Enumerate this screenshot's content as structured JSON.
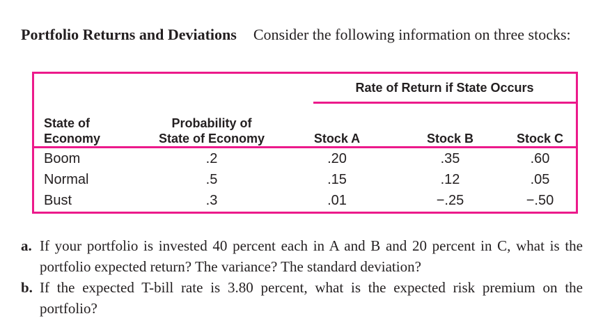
{
  "colors": {
    "accent_pink": "#ec1a8b",
    "text": "#231f20"
  },
  "problem": {
    "title": "Portfolio Returns and Deviations",
    "intro": "Consider the following information on three stocks:"
  },
  "table": {
    "span_header": "Rate of Return if State Occurs",
    "col_headers": {
      "state_line1": "State of",
      "state_line2": "Economy",
      "probability_line1": "Probability of",
      "probability_line2": "State of Economy",
      "stock_a": "Stock A",
      "stock_b": "Stock B",
      "stock_c": "Stock C"
    },
    "rows": [
      {
        "state": "Boom",
        "probability": ".2",
        "stock_a": ".20",
        "stock_b": ".35",
        "stock_c": ".60"
      },
      {
        "state": "Normal",
        "probability": ".5",
        "stock_a": ".15",
        "stock_b": ".12",
        "stock_c": ".05"
      },
      {
        "state": "Bust",
        "probability": ".3",
        "stock_a": ".01",
        "stock_b": "−.25",
        "stock_c": "−.50"
      }
    ]
  },
  "questions": [
    {
      "label": "a.",
      "text": "If your portfolio is invested 40 percent each in A and B and 20 percent in C, what is the portfolio expected return? The variance? The standard deviation?"
    },
    {
      "label": "b.",
      "text": "If the expected T-bill rate is 3.80 percent, what is the expected risk premium on the portfolio?"
    }
  ]
}
